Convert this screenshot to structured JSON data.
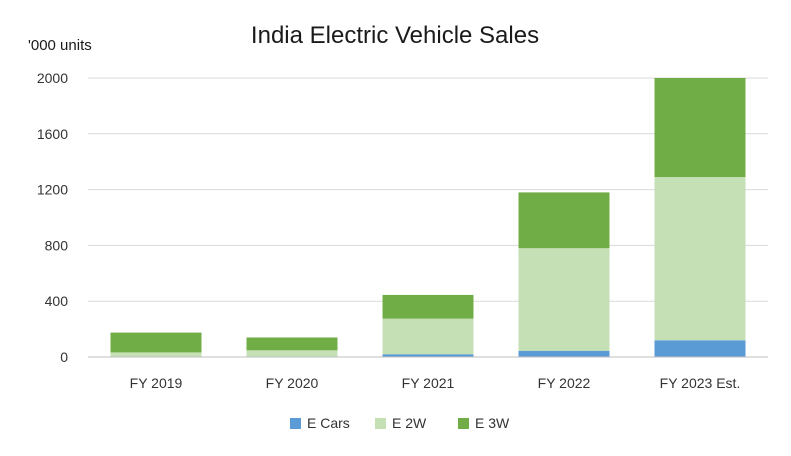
{
  "chart_data": {
    "type": "bar",
    "stacked": true,
    "title": "India Electric Vehicle Sales",
    "ylabel": "'000 units",
    "xlabel": "",
    "categories": [
      "FY 2019",
      "FY 2020",
      "FY 2021",
      "FY 2022",
      "FY 2023 Est."
    ],
    "ylim": [
      0,
      2000
    ],
    "yticks": [
      0,
      400,
      800,
      1200,
      1600,
      2000
    ],
    "grid": true,
    "legend_position": "bottom",
    "series": [
      {
        "name": "E Cars",
        "color": "#5b9bd5",
        "values": [
          3,
          3,
          20,
          45,
          120
        ]
      },
      {
        "name": "E 2W",
        "color": "#c5e0b4",
        "values": [
          30,
          45,
          255,
          735,
          1170
        ]
      },
      {
        "name": "E 3W",
        "color": "#70ad47",
        "values": [
          142,
          92,
          170,
          400,
          710
        ]
      }
    ]
  }
}
